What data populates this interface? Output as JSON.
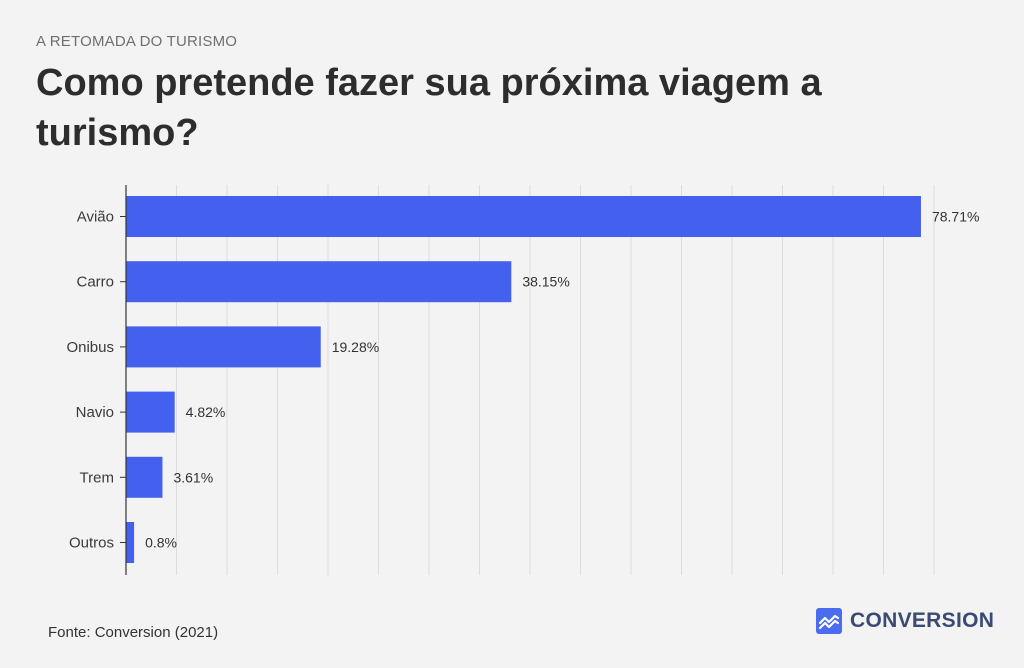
{
  "header": {
    "kicker": "A RETOMADA DO TURISMO",
    "title": "Como pretende fazer sua próxima viagem a turismo?"
  },
  "footer": {
    "source": "Fonte: Conversion (2021)",
    "brand": "CONVERSION",
    "brand_icon": "chart-trend-icon"
  },
  "colors": {
    "bar": "#4361ee",
    "brand_icon": "#4a6cf0"
  },
  "chart_data": {
    "type": "bar",
    "orientation": "horizontal",
    "categories": [
      "Avião",
      "Carro",
      "Onibus",
      "Navio",
      "Trem",
      "Outros"
    ],
    "values": [
      78.71,
      38.15,
      19.28,
      4.82,
      3.61,
      0.8
    ],
    "value_labels": [
      "78.71%",
      "38.15%",
      "19.28%",
      "4.82%",
      "3.61%",
      "0.8%"
    ],
    "xlim": [
      0,
      80
    ],
    "grid": true,
    "title": "Como pretende fazer sua próxima viagem a turismo?"
  }
}
